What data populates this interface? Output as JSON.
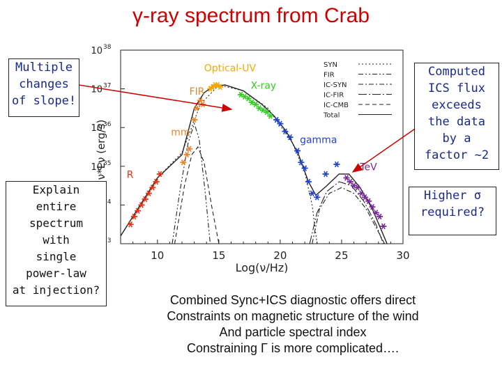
{
  "slide": {
    "title": "γ-ray spectrum from Crab",
    "note_left_top": [
      "Multiple",
      "changes",
      "of slope!"
    ],
    "note_left_bottom": [
      "Explain",
      "entire",
      "spectrum",
      "with",
      "single",
      "power-law",
      "at injection?"
    ],
    "note_right_top": [
      "Computed",
      "ICS flux",
      "exceeds",
      "the data",
      "by a",
      "factor ~2"
    ],
    "note_right_bottom": [
      "Higher σ",
      "required?"
    ],
    "caption": [
      "Combined Sync+ICS diagnostic offers direct",
      "Constraints on magnetic structure of the wind",
      "And particle spectral index",
      "Constraining Γ is more complicated…."
    ]
  },
  "colors": {
    "title": "#cc0000",
    "note_blue": "#1a2a8a",
    "arrow": "#cc0000",
    "R": "#e63312",
    "mm": "#e8862a",
    "FIR": "#e8862a",
    "OpticalUV": "#f5a800",
    "Xray": "#33cc22",
    "gamma": "#2244cc",
    "TeV": "#7a2a9a"
  },
  "chart_data": {
    "type": "scatter",
    "xlabel": "Log(ν/Hz)",
    "ylabel": "ν*Lν (erg/s)",
    "xlim": [
      7,
      30
    ],
    "ylim": [
      33,
      38
    ],
    "x_ticks": [
      "10",
      "15",
      "20",
      "25",
      "30"
    ],
    "y_ticks": [
      "10",
      "10",
      "10",
      "10",
      "10",
      "10"
    ],
    "y_tick_exponents": [
      "33",
      "34",
      "35",
      "36",
      "37",
      "38"
    ],
    "band_labels": [
      "R",
      "mm",
      "FIR",
      "Optical-UV",
      "X-ray",
      "gamma",
      "TeV"
    ],
    "legend_position": "top-right",
    "legend": [
      {
        "name": "SYN",
        "style": "dotted"
      },
      {
        "name": "FIR",
        "style": "dash-dot-dot"
      },
      {
        "name": "IC-SYN",
        "style": "dash-dot"
      },
      {
        "name": "IC-FIR",
        "style": "long-dash-dot"
      },
      {
        "name": "IC-CMB",
        "style": "dashed"
      },
      {
        "name": "Total",
        "style": "solid"
      }
    ],
    "series": [
      {
        "name": "R",
        "points": [
          [
            7.8,
            33.5
          ],
          [
            8.1,
            33.7
          ],
          [
            8.4,
            33.85
          ],
          [
            8.7,
            34.0
          ],
          [
            9.0,
            34.15
          ],
          [
            9.3,
            34.3
          ],
          [
            9.6,
            34.45
          ],
          [
            9.9,
            34.6
          ],
          [
            10.2,
            34.8
          ]
        ]
      },
      {
        "name": "mm",
        "points": [
          [
            12.1,
            35.1
          ],
          [
            12.4,
            35.3
          ],
          [
            12.6,
            35.45
          ]
        ]
      },
      {
        "name": "FIR",
        "points": [
          [
            13.0,
            36.2
          ],
          [
            13.2,
            36.5
          ],
          [
            13.5,
            36.7
          ],
          [
            13.7,
            36.6
          ]
        ]
      },
      {
        "name": "Optical-UV",
        "points": [
          [
            14.3,
            37.0
          ],
          [
            14.5,
            37.05
          ],
          [
            14.7,
            37.1
          ],
          [
            14.9,
            37.1
          ],
          [
            15.1,
            37.05
          ]
        ]
      },
      {
        "name": "X-ray",
        "points": [
          [
            16.8,
            36.85
          ],
          [
            17.1,
            36.8
          ],
          [
            17.4,
            36.75
          ],
          [
            17.7,
            36.65
          ],
          [
            18.0,
            36.6
          ],
          [
            18.3,
            36.5
          ],
          [
            18.6,
            36.45
          ],
          [
            18.9,
            36.4
          ],
          [
            19.2,
            36.3
          ]
        ]
      },
      {
        "name": "gamma",
        "points": [
          [
            19.7,
            36.2
          ],
          [
            20.0,
            36.1
          ],
          [
            20.4,
            35.9
          ],
          [
            20.8,
            35.75
          ],
          [
            21.4,
            35.4
          ],
          [
            21.7,
            35.1
          ],
          [
            22.0,
            34.95
          ],
          [
            22.3,
            34.6
          ],
          [
            22.6,
            34.3
          ],
          [
            23.0,
            34.2
          ],
          [
            23.7,
            34.8
          ],
          [
            24.6,
            35.05
          ]
        ]
      },
      {
        "name": "TeV",
        "points": [
          [
            25.4,
            34.7
          ],
          [
            25.7,
            34.6
          ],
          [
            26.0,
            34.5
          ],
          [
            26.3,
            34.45
          ],
          [
            26.6,
            34.3
          ],
          [
            26.9,
            34.2
          ],
          [
            27.2,
            34.1
          ],
          [
            27.5,
            33.95
          ],
          [
            27.8,
            33.8
          ],
          [
            28.1,
            33.7
          ],
          [
            28.4,
            33.45
          ]
        ]
      }
    ],
    "curves": [
      {
        "name": "Total",
        "points": [
          [
            7,
            33.2
          ],
          [
            10,
            34.7
          ],
          [
            12,
            35.3
          ],
          [
            13,
            36.5
          ],
          [
            13.8,
            36.9
          ],
          [
            14.5,
            37.05
          ],
          [
            15.5,
            37.1
          ],
          [
            17,
            36.95
          ],
          [
            18.5,
            36.6
          ],
          [
            19.5,
            36.3
          ],
          [
            20.5,
            35.9
          ],
          [
            21.5,
            35.3
          ],
          [
            22.3,
            34.6
          ],
          [
            22.9,
            34.25
          ],
          [
            23.8,
            34.5
          ],
          [
            24.8,
            34.8
          ],
          [
            25.6,
            34.8
          ],
          [
            26.5,
            34.45
          ],
          [
            27.5,
            33.9
          ],
          [
            28.3,
            33.3
          ],
          [
            28.7,
            33.0
          ]
        ]
      },
      {
        "name": "SYN",
        "points": [
          [
            7,
            33.2
          ],
          [
            10,
            34.7
          ],
          [
            12,
            35.35
          ],
          [
            13.5,
            36.6
          ],
          [
            15,
            37.1
          ],
          [
            17,
            36.95
          ],
          [
            19,
            36.5
          ],
          [
            21,
            35.6
          ],
          [
            22,
            34.85
          ],
          [
            22.6,
            34.0
          ],
          [
            23,
            33.0
          ]
        ]
      },
      {
        "name": "FIR",
        "points": [
          [
            11.2,
            33.0
          ],
          [
            11.8,
            34.3
          ],
          [
            12.5,
            35.6
          ],
          [
            13.0,
            36.1
          ],
          [
            13.4,
            35.7
          ],
          [
            13.9,
            34.3
          ],
          [
            14.3,
            33.0
          ]
        ]
      },
      {
        "name": "IC-SYN",
        "points": [
          [
            22.6,
            33.0
          ],
          [
            23.2,
            33.9
          ],
          [
            24.0,
            34.3
          ],
          [
            25.0,
            34.45
          ],
          [
            26.0,
            34.3
          ],
          [
            27.0,
            33.9
          ],
          [
            28.0,
            33.3
          ],
          [
            28.5,
            33.0
          ]
        ]
      },
      {
        "name": "IC-FIR",
        "points": [
          [
            22.4,
            33.0
          ],
          [
            23.0,
            33.8
          ],
          [
            23.8,
            34.35
          ],
          [
            24.8,
            34.6
          ],
          [
            25.8,
            34.5
          ],
          [
            26.8,
            34.1
          ],
          [
            27.8,
            33.5
          ],
          [
            28.4,
            33.0
          ]
        ]
      },
      {
        "name": "IC-CMB",
        "points": [
          [
            11.4,
            33.0
          ],
          [
            12.2,
            34.5
          ],
          [
            12.8,
            35.3
          ],
          [
            13.3,
            35.5
          ],
          [
            13.8,
            35.1
          ],
          [
            14.4,
            34.0
          ],
          [
            15.0,
            33.0
          ]
        ]
      }
    ]
  }
}
